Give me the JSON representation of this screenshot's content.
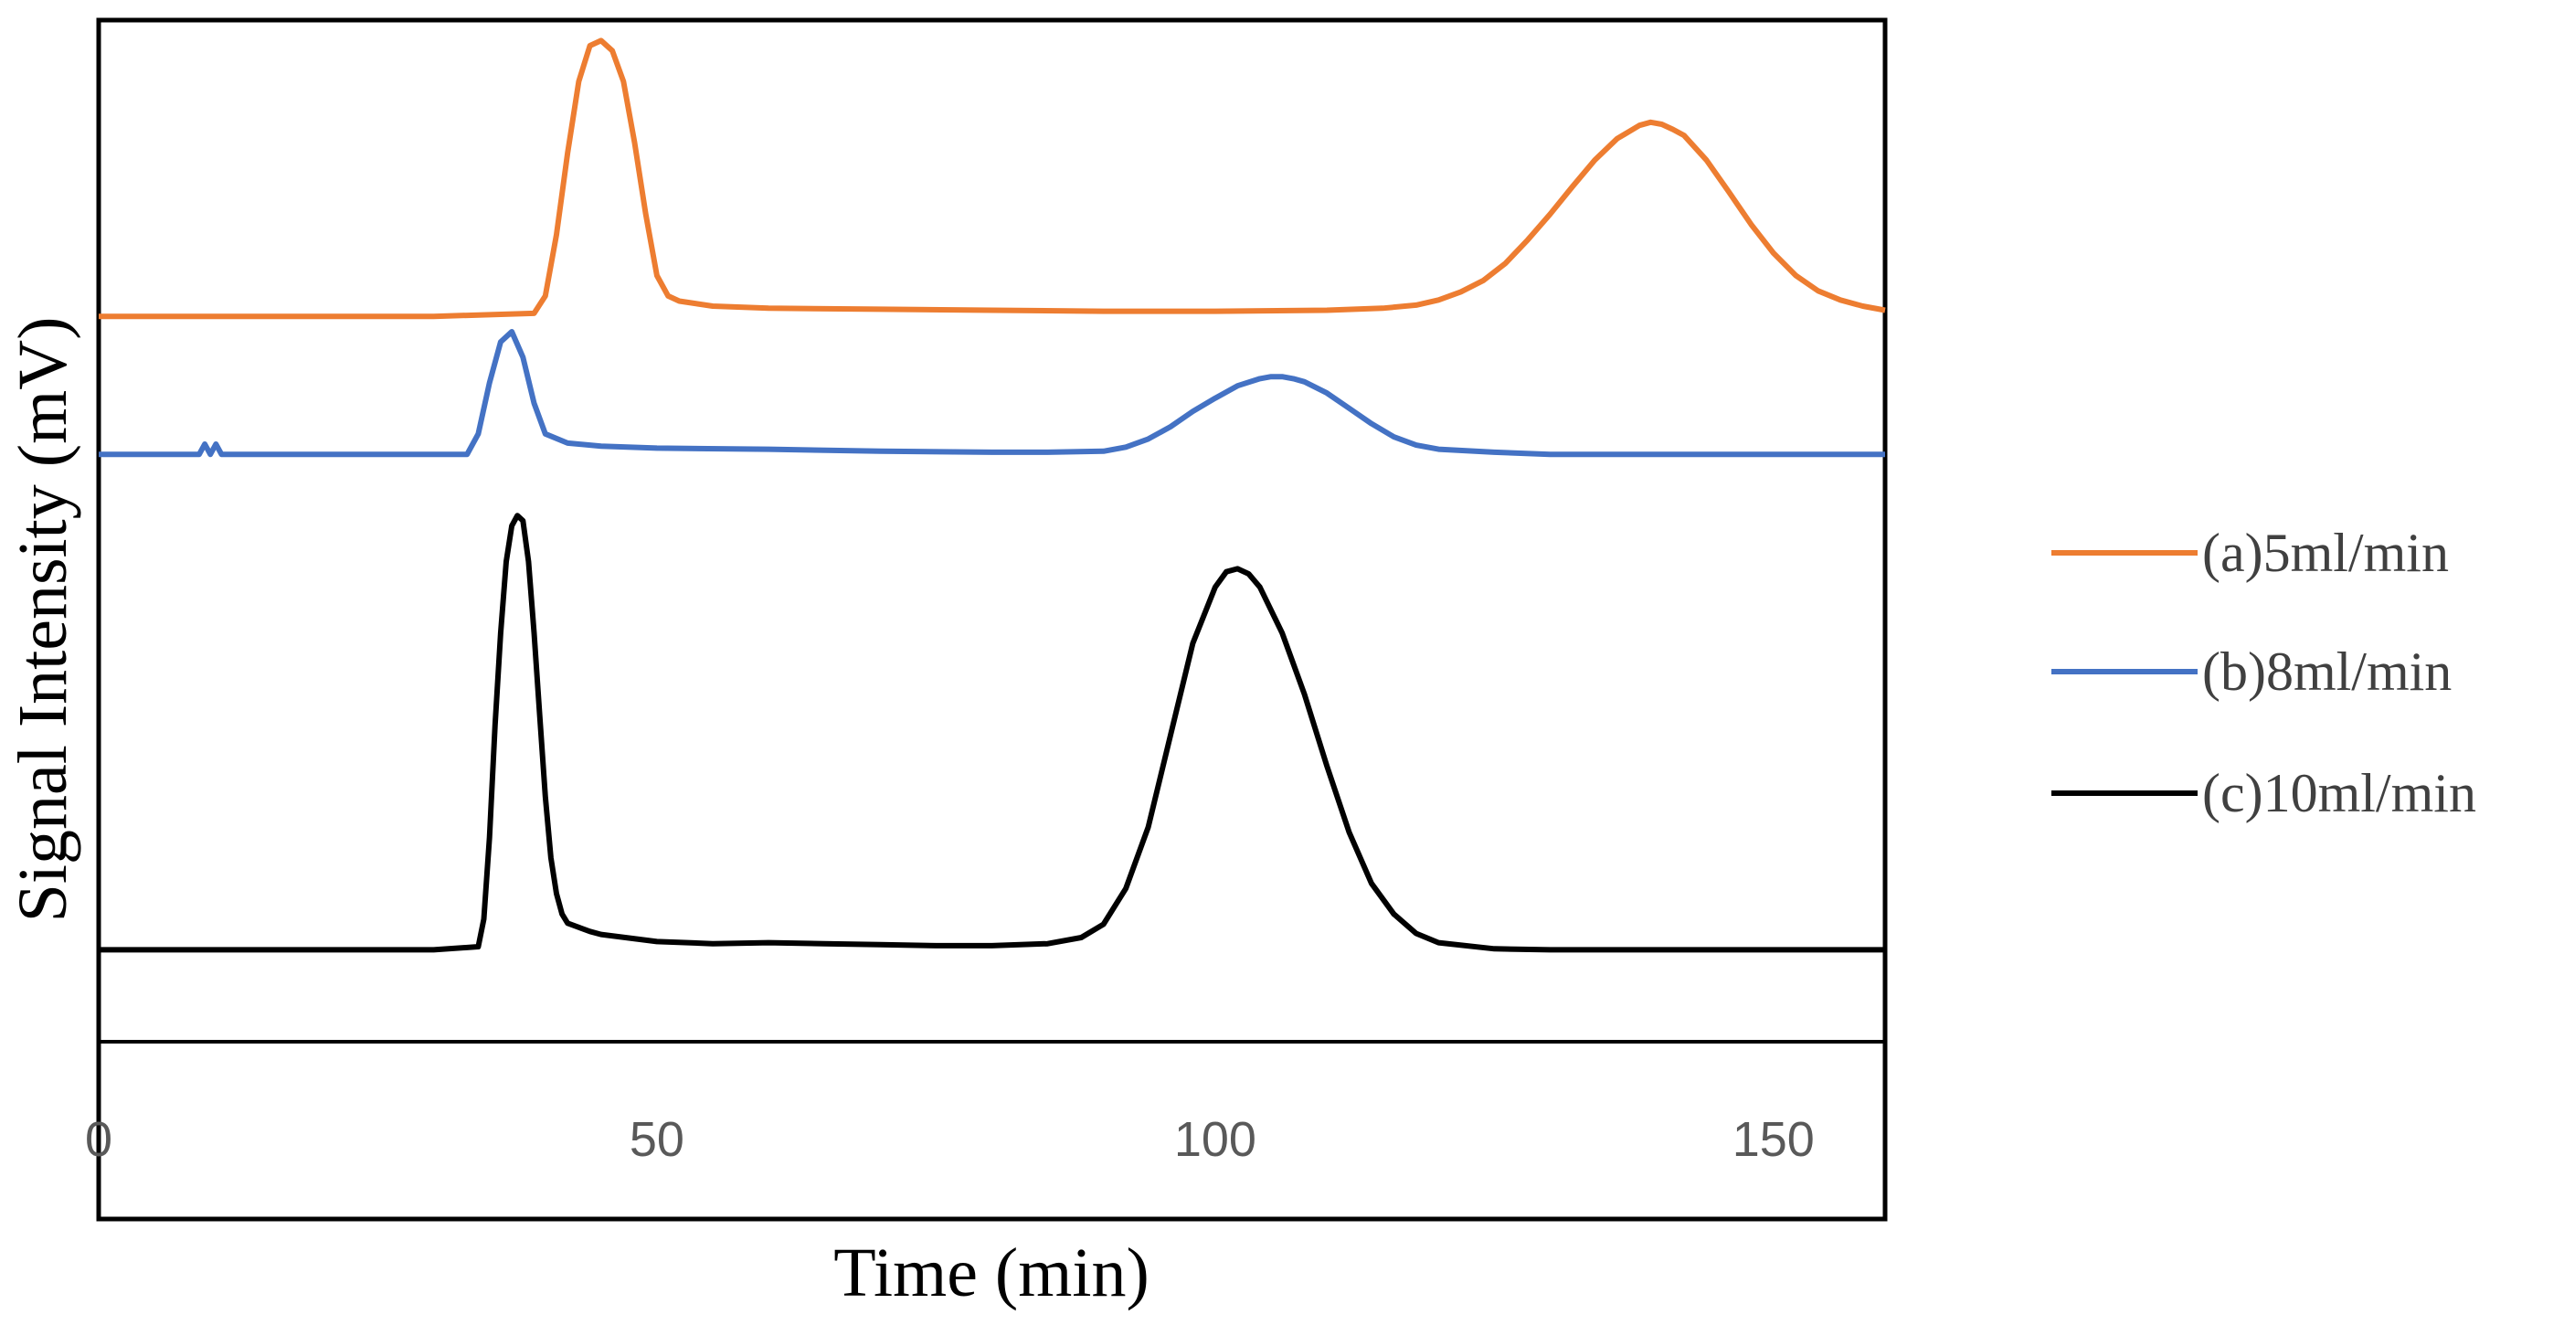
{
  "chart_data": {
    "type": "line",
    "title": "",
    "xlabel": "Time (min)",
    "ylabel": "Signal Intensity (mV)",
    "xlim": [
      0,
      160
    ],
    "ylim": [
      0,
      100
    ],
    "xticks": [
      0,
      50,
      100,
      150
    ],
    "xtick_labels": [
      "0",
      "50",
      "100",
      "150"
    ],
    "grid": false,
    "legend_position": "right",
    "series": [
      {
        "name": "(a)5ml/min",
        "color": "#ED7D31",
        "x": [
          0,
          10,
          20,
          30,
          39,
          40,
          41,
          42,
          43,
          44,
          45,
          46,
          47,
          48,
          49,
          50,
          51,
          52,
          55,
          60,
          70,
          80,
          90,
          100,
          110,
          115,
          118,
          120,
          122,
          124,
          126,
          128,
          130,
          132,
          134,
          136,
          138,
          139,
          140,
          141,
          142,
          144,
          146,
          148,
          150,
          152,
          154,
          156,
          158,
          160
        ],
        "y": [
          71,
          71,
          71,
          71,
          71.3,
          73,
          79,
          87,
          94,
          97.5,
          98,
          97,
          94,
          88,
          81,
          75,
          73,
          72.5,
          72,
          71.8,
          71.7,
          71.6,
          71.5,
          71.5,
          71.6,
          71.8,
          72.1,
          72.6,
          73.4,
          74.5,
          76.2,
          78.5,
          81,
          83.7,
          86.3,
          88.4,
          89.7,
          90,
          89.8,
          89.3,
          88.7,
          86.3,
          83.2,
          80,
          77.2,
          75,
          73.5,
          72.6,
          72,
          71.6
        ]
      },
      {
        "name": "(b)8ml/min",
        "color": "#4472C4",
        "x": [
          0,
          5,
          9,
          9.5,
          10,
          10.5,
          11,
          15,
          20,
          25,
          30,
          33,
          34,
          35,
          36,
          37,
          38,
          39,
          40,
          42,
          45,
          50,
          60,
          70,
          80,
          85,
          90,
          92,
          94,
          96,
          98,
          100,
          102,
          104,
          105,
          106,
          107,
          108,
          110,
          112,
          114,
          116,
          118,
          120,
          125,
          130,
          140,
          150,
          160
        ],
        "y": [
          57.5,
          57.5,
          57.5,
          58.5,
          57.5,
          58.5,
          57.5,
          57.5,
          57.5,
          57.5,
          57.5,
          57.5,
          59.5,
          64.5,
          68.5,
          69.5,
          67,
          62.5,
          59.5,
          58.6,
          58.3,
          58.1,
          58,
          57.8,
          57.7,
          57.7,
          57.8,
          58.2,
          59,
          60.2,
          61.7,
          63,
          64.2,
          64.9,
          65.1,
          65.1,
          64.9,
          64.6,
          63.5,
          62,
          60.5,
          59.2,
          58.4,
          58,
          57.7,
          57.5,
          57.5,
          57.5,
          57.5
        ]
      },
      {
        "name": "(c)10ml/min",
        "color": "#000000",
        "x": [
          0,
          10,
          20,
          30,
          34,
          34.5,
          35,
          35.5,
          36,
          36.5,
          37,
          37.5,
          38,
          38.5,
          39,
          39.5,
          40,
          40.5,
          41,
          41.5,
          42,
          43,
          44,
          45,
          50,
          55,
          60,
          65,
          70,
          75,
          80,
          85,
          88,
          90,
          92,
          94,
          96,
          98,
          100,
          101,
          102,
          103,
          104,
          106,
          108,
          110,
          112,
          114,
          116,
          118,
          120,
          125,
          130,
          140,
          150,
          160
        ],
        "y": [
          9,
          9,
          9,
          9,
          9.3,
          12,
          20,
          31,
          40,
          47,
          50.5,
          51.5,
          51,
          47,
          40,
          32,
          24,
          18,
          14.5,
          12.5,
          11.6,
          11.2,
          10.8,
          10.5,
          9.8,
          9.6,
          9.7,
          9.6,
          9.5,
          9.4,
          9.4,
          9.6,
          10.2,
          11.5,
          15,
          21,
          30,
          39,
          44.5,
          46,
          46.3,
          45.8,
          44.5,
          40,
          34,
          27,
          20.5,
          15.5,
          12.5,
          10.6,
          9.7,
          9.1,
          9,
          9,
          9,
          9
        ]
      }
    ]
  }
}
